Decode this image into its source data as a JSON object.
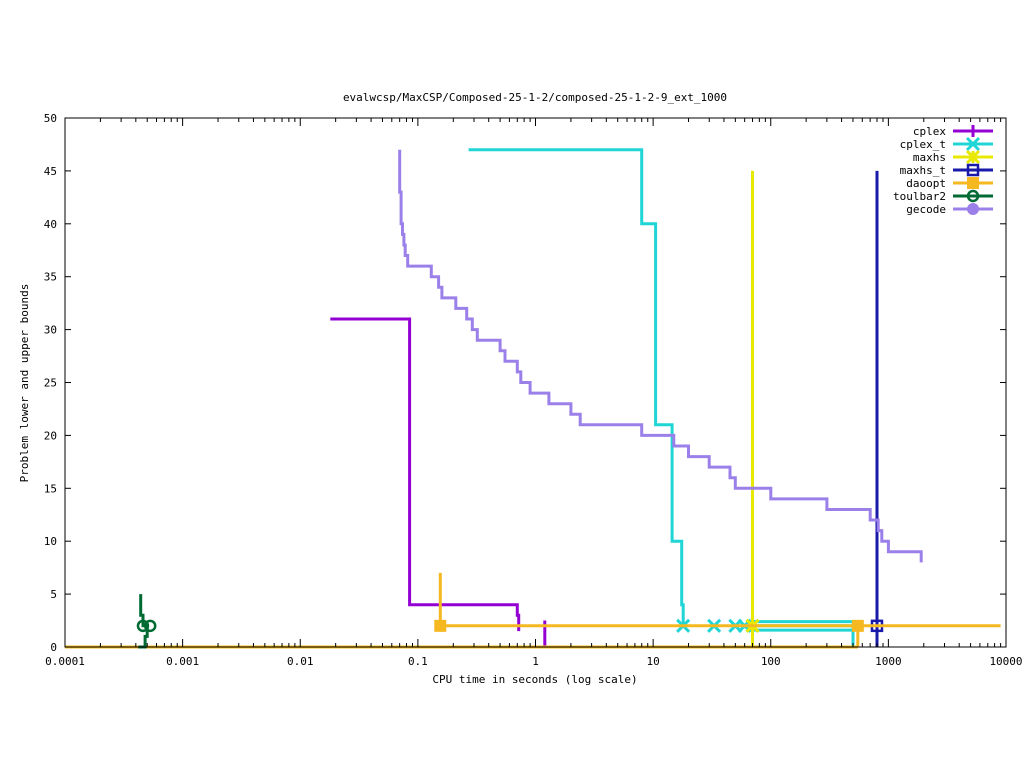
{
  "chart_data": {
    "type": "line",
    "title": "evalwcsp/MaxCSP/Composed-25-1-2/composed-25-1-2-9_ext_1000",
    "xlabel": "CPU time in seconds (log scale)",
    "ylabel": "Problem lower and upper bounds",
    "xscale": "log",
    "xlim": [
      0.0001,
      10000
    ],
    "ylim": [
      0,
      50
    ],
    "x_ticks": [
      0.0001,
      0.001,
      0.01,
      0.1,
      1,
      10,
      100,
      1000,
      10000
    ],
    "x_tick_labels": [
      "0.0001",
      "0.001",
      "0.01",
      "0.1",
      "1",
      "10",
      "100",
      "1000",
      "10000"
    ],
    "y_ticks": [
      0,
      5,
      10,
      15,
      20,
      25,
      30,
      35,
      40,
      45,
      50
    ],
    "y_tick_labels": [
      "0",
      "5",
      "10",
      "15",
      "20",
      "25",
      "30",
      "35",
      "40",
      "45",
      "50"
    ],
    "grid": false,
    "legend_position": "top-right",
    "series": [
      {
        "name": "cplex",
        "color": "#9400d3",
        "marker": "plus",
        "lines": [
          [
            [
              0.018,
              31
            ],
            [
              0.085,
              31
            ],
            [
              0.085,
              4
            ],
            [
              0.7,
              4
            ],
            [
              0.7,
              3
            ],
            [
              0.72,
              3
            ],
            [
              0.72,
              1.5
            ]
          ],
          [
            [
              1.2,
              0
            ],
            [
              1.2,
              2.5
            ]
          ]
        ],
        "markers": []
      },
      {
        "name": "cplex_t",
        "color": "#20d5d5",
        "marker": "x",
        "lines": [
          [
            [
              0.27,
              47
            ],
            [
              8,
              47
            ],
            [
              8,
              40
            ],
            [
              10.5,
              40
            ],
            [
              10.5,
              21
            ],
            [
              14.5,
              21
            ],
            [
              14.5,
              10
            ],
            [
              17.5,
              10
            ],
            [
              17.5,
              4
            ],
            [
              18,
              4
            ],
            [
              18,
              2
            ]
          ],
          [
            [
              70,
              2
            ],
            [
              500,
              2
            ]
          ],
          [
            [
              70,
              1.6
            ],
            [
              500,
              1.6
            ]
          ],
          [
            [
              70,
              2.4
            ],
            [
              500,
              2.4
            ]
          ],
          [
            [
              500,
              0
            ],
            [
              500,
              2.2
            ]
          ]
        ],
        "markers": [
          [
            18,
            2
          ],
          [
            33,
            2
          ],
          [
            50,
            2
          ],
          [
            60,
            2
          ],
          [
            70,
            2
          ]
        ]
      },
      {
        "name": "maxhs",
        "color": "#e8e800",
        "marker": "star",
        "lines": [
          [
            [
              70,
              45
            ],
            [
              70,
              0
            ]
          ]
        ],
        "markers": [
          [
            70,
            2
          ]
        ]
      },
      {
        "name": "maxhs_t",
        "color": "#1a1aaa",
        "marker": "square",
        "lines": [
          [
            [
              800,
              45
            ],
            [
              800,
              0
            ]
          ]
        ],
        "markers": [
          [
            800,
            2
          ]
        ]
      },
      {
        "name": "daoopt",
        "color": "#f5b820",
        "marker": "filled-square",
        "lines": [
          [
            [
              0.0001,
              0
            ],
            [
              550,
              0
            ]
          ],
          [
            [
              0.155,
              2
            ],
            [
              9000,
              2
            ]
          ],
          [
            [
              0.155,
              7
            ],
            [
              0.155,
              1.8
            ]
          ],
          [
            [
              550,
              2.2
            ],
            [
              550,
              0
            ]
          ]
        ],
        "markers": [
          [
            0.155,
            2
          ],
          [
            550,
            2
          ]
        ]
      },
      {
        "name": "toulbar2",
        "color": "#006a33",
        "marker": "circle",
        "lines": [
          [
            [
              0.00044,
              5
            ],
            [
              0.00044,
              3
            ],
            [
              0.00046,
              3
            ],
            [
              0.00046,
              2
            ],
            [
              0.0005,
              2
            ]
          ],
          [
            [
              0.00042,
              0
            ],
            [
              0.00048,
              0
            ],
            [
              0.00048,
              1
            ],
            [
              0.0005,
              1
            ],
            [
              0.0005,
              2
            ]
          ]
        ],
        "markers": [
          [
            0.00046,
            2
          ],
          [
            0.00053,
            2
          ]
        ]
      },
      {
        "name": "gecode",
        "color": "#9b80ea",
        "marker": "filled-circle",
        "lines": [
          [
            [
              0.07,
              47
            ],
            [
              0.07,
              43
            ],
            [
              0.072,
              43
            ],
            [
              0.072,
              40
            ],
            [
              0.074,
              40
            ],
            [
              0.074,
              39
            ],
            [
              0.076,
              39
            ],
            [
              0.076,
              38
            ],
            [
              0.078,
              38
            ],
            [
              0.078,
              37
            ],
            [
              0.082,
              37
            ],
            [
              0.082,
              36
            ],
            [
              0.13,
              36
            ],
            [
              0.13,
              35
            ],
            [
              0.15,
              35
            ],
            [
              0.15,
              34
            ],
            [
              0.16,
              34
            ],
            [
              0.16,
              33
            ],
            [
              0.21,
              33
            ],
            [
              0.21,
              32
            ],
            [
              0.26,
              32
            ],
            [
              0.26,
              31
            ],
            [
              0.29,
              31
            ],
            [
              0.29,
              30
            ],
            [
              0.32,
              30
            ],
            [
              0.32,
              29
            ],
            [
              0.5,
              29
            ],
            [
              0.5,
              28
            ],
            [
              0.55,
              28
            ],
            [
              0.55,
              27
            ],
            [
              0.7,
              27
            ],
            [
              0.7,
              26
            ],
            [
              0.75,
              26
            ],
            [
              0.75,
              25
            ],
            [
              0.9,
              25
            ],
            [
              0.9,
              24
            ],
            [
              1.3,
              24
            ],
            [
              1.3,
              23
            ],
            [
              2,
              23
            ],
            [
              2,
              22
            ],
            [
              2.4,
              22
            ],
            [
              2.4,
              21
            ],
            [
              8,
              21
            ],
            [
              8,
              20
            ],
            [
              15,
              20
            ],
            [
              15,
              19
            ],
            [
              20,
              19
            ],
            [
              20,
              18
            ],
            [
              30,
              18
            ],
            [
              30,
              17
            ],
            [
              45,
              17
            ],
            [
              45,
              16
            ],
            [
              50,
              16
            ],
            [
              50,
              15
            ],
            [
              100,
              15
            ],
            [
              100,
              14
            ],
            [
              300,
              14
            ],
            [
              300,
              13
            ],
            [
              700,
              13
            ],
            [
              700,
              12
            ],
            [
              820,
              12
            ],
            [
              820,
              11
            ],
            [
              880,
              11
            ],
            [
              880,
              10
            ],
            [
              1000,
              10
            ],
            [
              1000,
              9
            ],
            [
              1900,
              9
            ],
            [
              1900,
              8
            ]
          ]
        ],
        "markers": []
      }
    ]
  }
}
